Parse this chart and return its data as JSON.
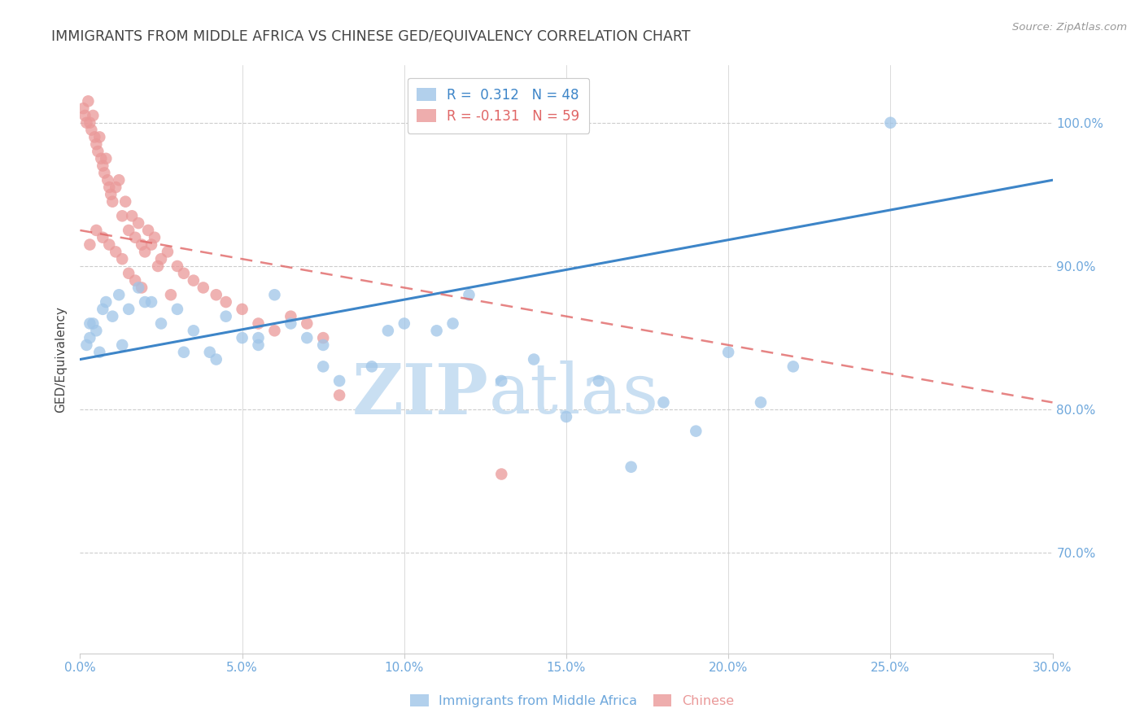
{
  "title": "IMMIGRANTS FROM MIDDLE AFRICA VS CHINESE GED/EQUIVALENCY CORRELATION CHART",
  "source": "Source: ZipAtlas.com",
  "ylabel": "GED/Equivalency",
  "x_tick_labels": [
    "0.0%",
    "5.0%",
    "10.0%",
    "15.0%",
    "20.0%",
    "25.0%",
    "30.0%"
  ],
  "x_ticks": [
    0.0,
    5.0,
    10.0,
    15.0,
    20.0,
    25.0,
    30.0
  ],
  "y_tick_labels": [
    "100.0%",
    "90.0%",
    "80.0%",
    "70.0%"
  ],
  "y_ticks": [
    100.0,
    90.0,
    80.0,
    70.0
  ],
  "xlim": [
    0.0,
    30.0
  ],
  "ylim": [
    63.0,
    104.0
  ],
  "legend_labels": [
    "Immigrants from Middle Africa",
    "Chinese"
  ],
  "R_blue": 0.312,
  "N_blue": 48,
  "R_pink": -0.131,
  "N_pink": 59,
  "blue_color": "#9fc5e8",
  "pink_color": "#ea9999",
  "blue_line_color": "#3d85c8",
  "pink_line_color": "#e06666",
  "grid_color": "#cccccc",
  "title_color": "#444444",
  "axis_label_color": "#6fa8dc",
  "watermark_color": "#c9dff2",
  "blue_line_x": [
    0.0,
    30.0
  ],
  "blue_line_y": [
    83.5,
    96.0
  ],
  "pink_line_x": [
    0.0,
    30.0
  ],
  "pink_line_y": [
    92.5,
    80.5
  ],
  "blue_scatter_x": [
    0.2,
    0.3,
    0.4,
    0.5,
    0.6,
    0.8,
    1.0,
    1.2,
    1.5,
    1.8,
    2.0,
    2.5,
    3.0,
    3.5,
    4.0,
    4.5,
    5.0,
    5.5,
    6.0,
    6.5,
    7.0,
    7.5,
    8.0,
    9.0,
    10.0,
    11.0,
    12.0,
    13.0,
    14.0,
    15.0,
    16.0,
    17.0,
    18.0,
    19.0,
    20.0,
    21.0,
    22.0,
    25.0,
    0.3,
    0.7,
    1.3,
    2.2,
    3.2,
    4.2,
    5.5,
    7.5,
    9.5,
    11.5
  ],
  "blue_scatter_y": [
    84.5,
    85.0,
    86.0,
    85.5,
    84.0,
    87.5,
    86.5,
    88.0,
    87.0,
    88.5,
    87.5,
    86.0,
    87.0,
    85.5,
    84.0,
    86.5,
    85.0,
    84.5,
    88.0,
    86.0,
    85.0,
    84.5,
    82.0,
    83.0,
    86.0,
    85.5,
    88.0,
    82.0,
    83.5,
    79.5,
    82.0,
    76.0,
    80.5,
    78.5,
    84.0,
    80.5,
    83.0,
    100.0,
    86.0,
    87.0,
    84.5,
    87.5,
    84.0,
    83.5,
    85.0,
    83.0,
    85.5,
    86.0
  ],
  "pink_scatter_x": [
    0.1,
    0.15,
    0.2,
    0.25,
    0.3,
    0.35,
    0.4,
    0.45,
    0.5,
    0.55,
    0.6,
    0.65,
    0.7,
    0.75,
    0.8,
    0.85,
    0.9,
    0.95,
    1.0,
    1.1,
    1.2,
    1.3,
    1.4,
    1.5,
    1.6,
    1.7,
    1.8,
    1.9,
    2.0,
    2.1,
    2.2,
    2.3,
    2.5,
    2.7,
    3.0,
    3.2,
    3.5,
    3.8,
    4.2,
    4.5,
    5.0,
    5.5,
    6.0,
    6.5,
    7.0,
    7.5,
    8.0,
    0.3,
    0.5,
    0.7,
    0.9,
    1.1,
    1.3,
    1.5,
    1.7,
    1.9,
    2.4,
    2.8,
    13.0
  ],
  "pink_scatter_y": [
    101.0,
    100.5,
    100.0,
    101.5,
    100.0,
    99.5,
    100.5,
    99.0,
    98.5,
    98.0,
    99.0,
    97.5,
    97.0,
    96.5,
    97.5,
    96.0,
    95.5,
    95.0,
    94.5,
    95.5,
    96.0,
    93.5,
    94.5,
    92.5,
    93.5,
    92.0,
    93.0,
    91.5,
    91.0,
    92.5,
    91.5,
    92.0,
    90.5,
    91.0,
    90.0,
    89.5,
    89.0,
    88.5,
    88.0,
    87.5,
    87.0,
    86.0,
    85.5,
    86.5,
    86.0,
    85.0,
    81.0,
    91.5,
    92.5,
    92.0,
    91.5,
    91.0,
    90.5,
    89.5,
    89.0,
    88.5,
    90.0,
    88.0,
    75.5
  ]
}
